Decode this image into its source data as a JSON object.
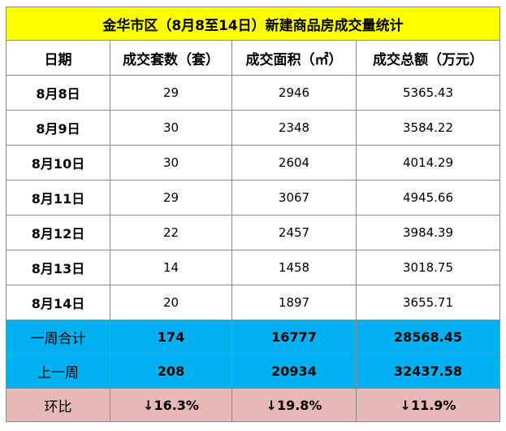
{
  "title": "金华市区（8月8至14日）新建商品房成交量统计",
  "headers": [
    "日期",
    "成交套数（套）",
    "成交面积（㎡）",
    "成交总额（万元）"
  ],
  "rows": [
    [
      "8月8日",
      "29",
      "2946",
      "5365.43"
    ],
    [
      "8月9日",
      "30",
      "2348",
      "3584.22"
    ],
    [
      "8月10日",
      "30",
      "2604",
      "4014.29"
    ],
    [
      "8月11日",
      "29",
      "3067",
      "4945.66"
    ],
    [
      "8月12日",
      "22",
      "2457",
      "3984.39"
    ],
    [
      "8月13日",
      "14",
      "1458",
      "3018.75"
    ],
    [
      "8月14日",
      "20",
      "1897",
      "3655.71"
    ]
  ],
  "week_total": [
    "一周合计",
    "174",
    "16777",
    "28568.45"
  ],
  "last_week": [
    "上一周",
    "208",
    "20934",
    "32437.58"
  ],
  "change": [
    "环比",
    "↓16.3%",
    "↓19.8%",
    "↓11.9%"
  ],
  "colors": {
    "title_bg": "#ffff00",
    "summary_bg": "#00b0f0",
    "change_bg": "#e6b8b7"
  }
}
